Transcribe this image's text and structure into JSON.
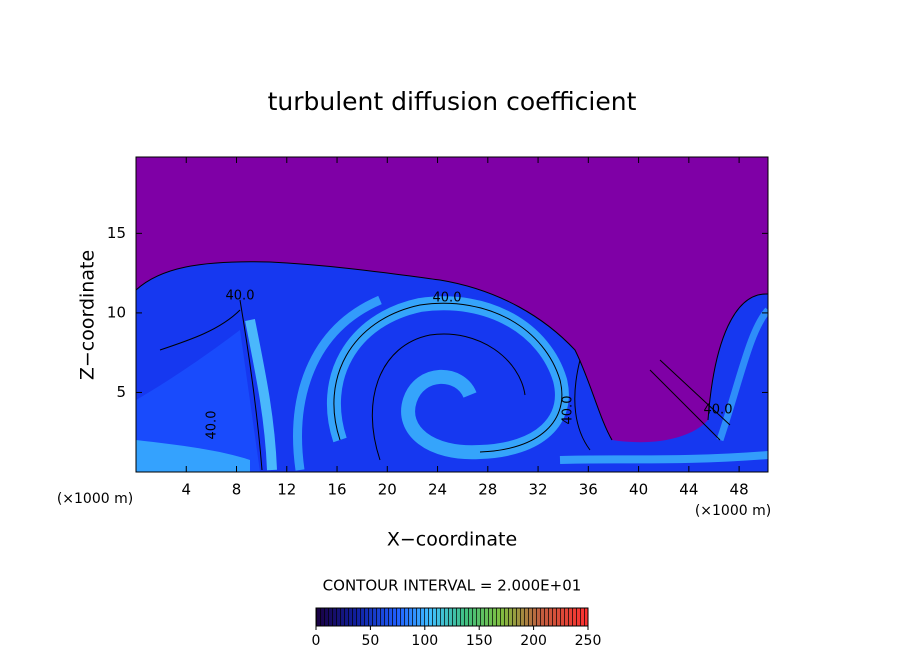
{
  "chart_data": {
    "type": "contour",
    "title": "turbulent diffusion coefficient",
    "x_label": "X−coordinate",
    "y_label": "Z−coordinate",
    "x_unit": "(×1000 m)",
    "xlim": [
      0,
      50.3
    ],
    "xticks": [
      4,
      8,
      12,
      16,
      20,
      24,
      28,
      32,
      36,
      40,
      44,
      48
    ],
    "ylim": [
      0,
      19.8
    ],
    "yticks": [
      5,
      10,
      15
    ],
    "contour_labels": [
      "40.0",
      "40.0",
      "40.0",
      "40.0",
      "40.0"
    ],
    "contour_interval": "CONTOUR INTERVAL = 2.000E+01",
    "colorbar": {
      "lim": [
        0,
        250
      ],
      "ticks": [
        0,
        50,
        100,
        150,
        200,
        250
      ]
    }
  }
}
